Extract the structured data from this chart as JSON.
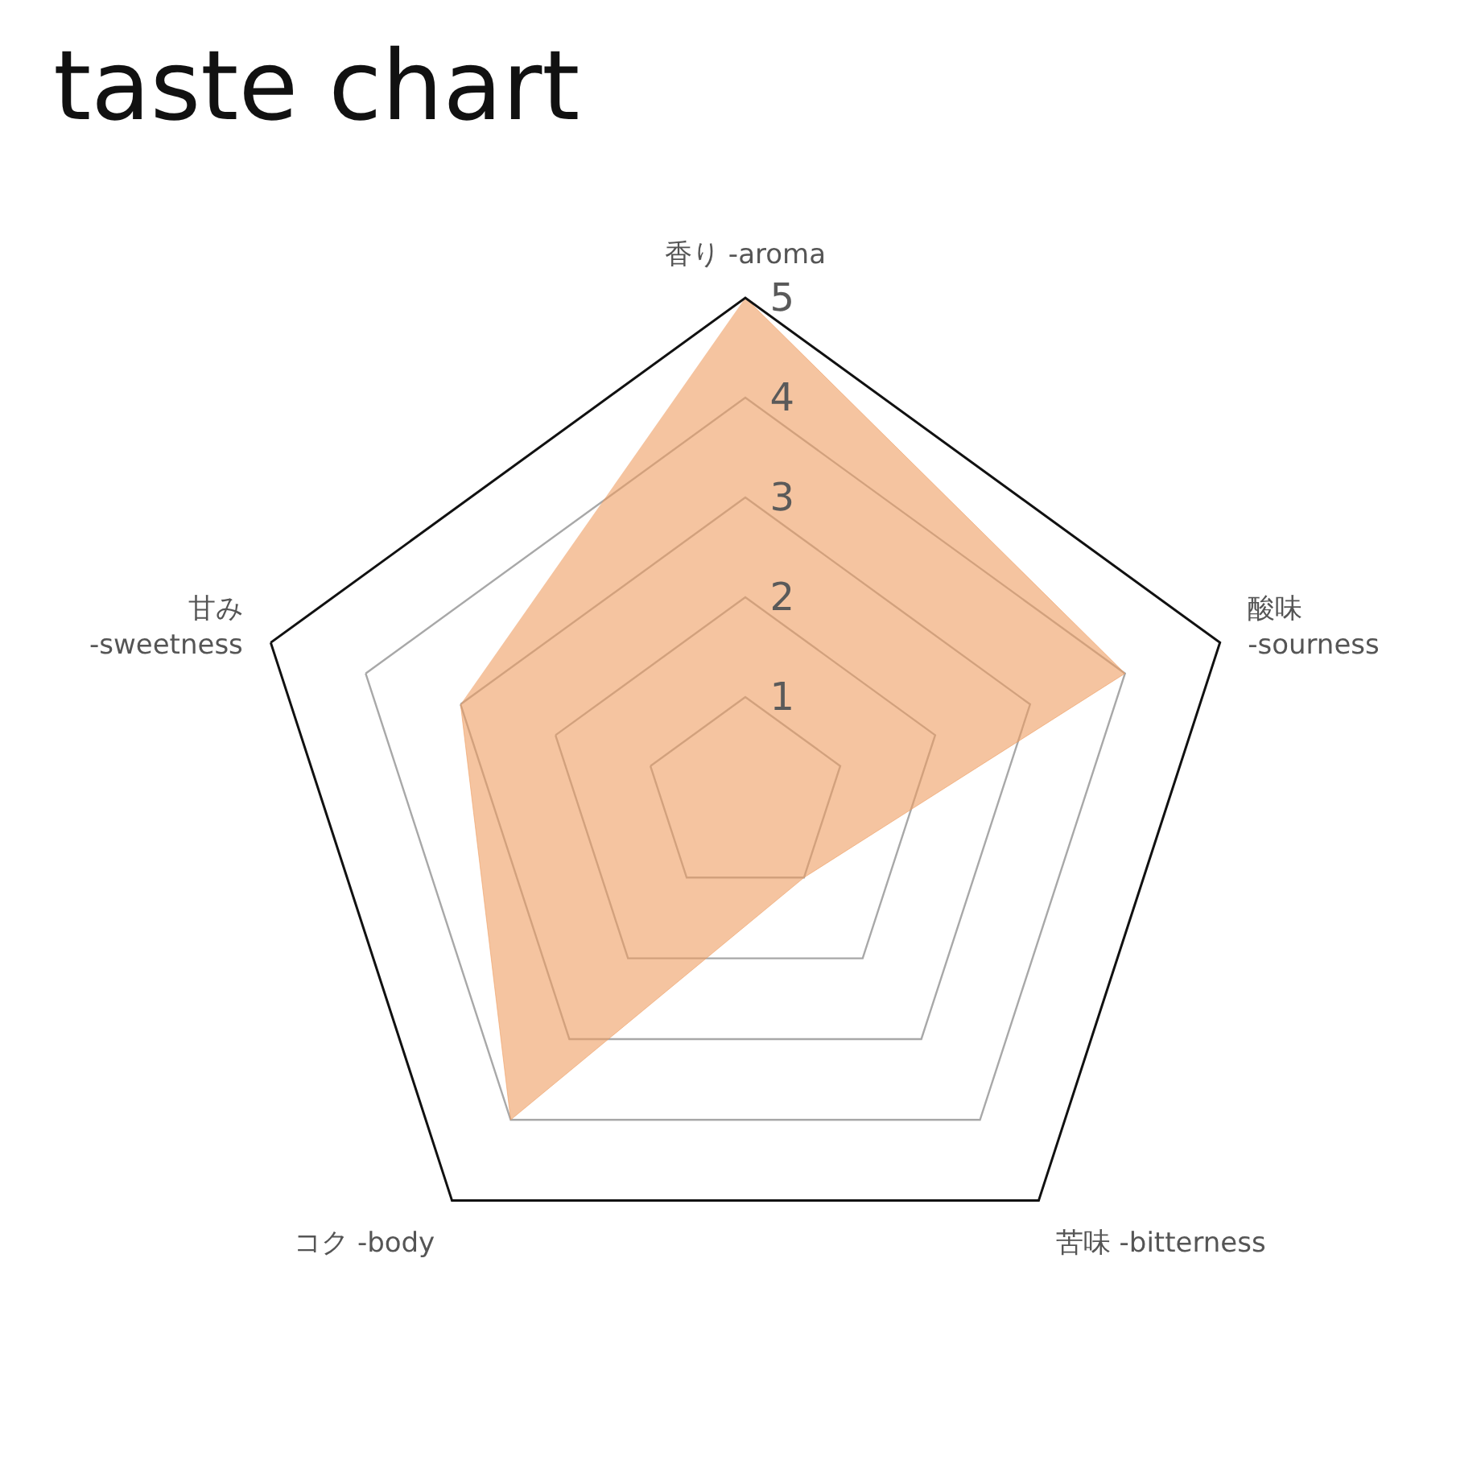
{
  "chart_data": {
    "type": "radar",
    "title": "taste chart",
    "categories": [
      "香り -aroma",
      "酸味\n-sourness",
      "苦味 -bitterness",
      "コク -body",
      "甘み\n-sweetness"
    ],
    "series": [
      {
        "color": "#f5c4a0",
        "values": [
          5,
          4,
          1,
          4,
          3
        ]
      }
    ],
    "ylim": [
      0,
      5
    ],
    "yticks": [
      1,
      2,
      3,
      4,
      5
    ],
    "grid": true
  }
}
